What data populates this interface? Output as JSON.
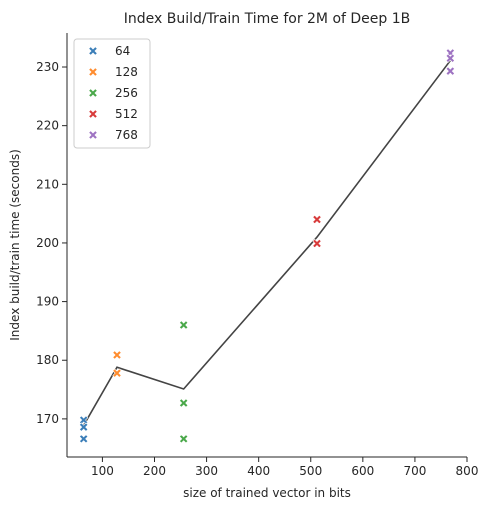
{
  "chart_data": {
    "type": "scatter",
    "title": "Index Build/Train Time for 2M of Deep 1B",
    "xlabel": "size of trained vector in bits",
    "ylabel": "Index build/train time (seconds)",
    "xlim": [
      32,
      800
    ],
    "ylim": [
      163.5,
      235.8
    ],
    "x_ticks": [
      100,
      200,
      300,
      400,
      500,
      600,
      700,
      800
    ],
    "y_ticks": [
      170,
      180,
      190,
      200,
      210,
      220,
      230
    ],
    "grid": false,
    "legend_position": "top-left",
    "marker": "X",
    "series": [
      {
        "name": "64",
        "color": "#3b7eb8",
        "points": [
          [
            64,
            169.8
          ],
          [
            64,
            168.6
          ],
          [
            64,
            166.6
          ]
        ]
      },
      {
        "name": "128",
        "color": "#ff8c2e",
        "points": [
          [
            128,
            180.9
          ],
          [
            128,
            177.8
          ]
        ]
      },
      {
        "name": "256",
        "color": "#4aa84a",
        "points": [
          [
            256,
            186.0
          ],
          [
            256,
            172.7
          ],
          [
            256,
            166.6
          ]
        ]
      },
      {
        "name": "512",
        "color": "#d83b3b",
        "points": [
          [
            512,
            204.0
          ],
          [
            512,
            199.9
          ]
        ]
      },
      {
        "name": "768",
        "color": "#9e73c2",
        "points": [
          [
            768,
            232.4
          ],
          [
            768,
            231.5
          ],
          [
            768,
            229.3
          ]
        ]
      }
    ],
    "trend_line": {
      "color": "#444444",
      "x": [
        64,
        128,
        256,
        512,
        768
      ],
      "y": [
        168.9,
        178.8,
        175.1,
        201.0,
        231.1
      ]
    }
  }
}
